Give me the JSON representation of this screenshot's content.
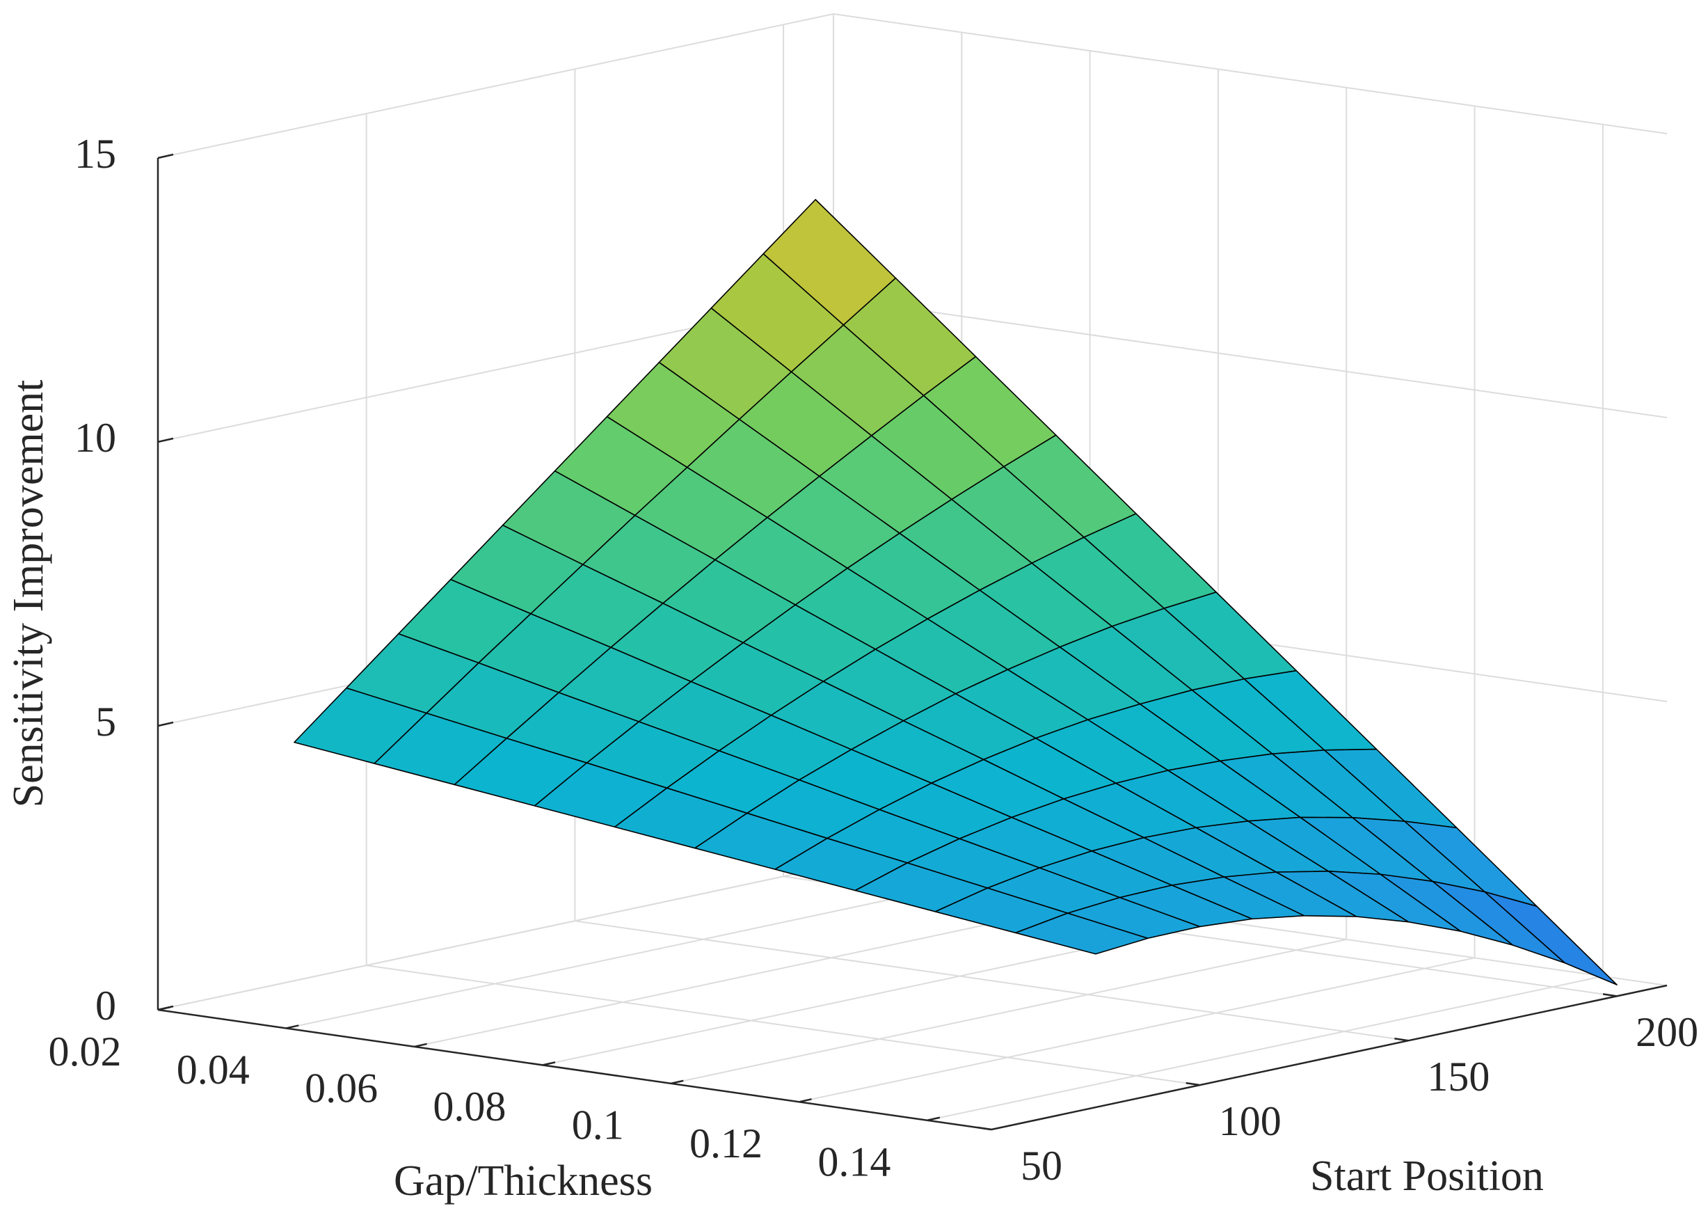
{
  "chart_data": {
    "type": "surface",
    "xlabel": "Gap/Thickness",
    "ylabel": "Start Position",
    "zlabel": "Sensitivity Improvement",
    "x": [
      0.025,
      0.0375,
      0.05,
      0.0625,
      0.075,
      0.0875,
      0.1,
      0.1125,
      0.125,
      0.1375,
      0.15
    ],
    "y": [
      75,
      87.5,
      100,
      112.5,
      125,
      137.5,
      150,
      162.5,
      175,
      187.5,
      200
    ],
    "z": [
      [
        4.4,
        5.16,
        5.92,
        6.68,
        7.44,
        8.2,
        8.96,
        9.72,
        10.48,
        11.24,
        12.0
      ],
      [
        4.23,
        4.92,
        5.61,
        6.28,
        6.95,
        7.62,
        8.27,
        8.92,
        9.56,
        10.19,
        10.82
      ],
      [
        4.06,
        4.68,
        5.29,
        5.89,
        6.47,
        7.04,
        7.59,
        8.12,
        8.64,
        9.15,
        9.64
      ],
      [
        3.89,
        4.45,
        4.98,
        5.49,
        5.98,
        6.45,
        6.9,
        7.32,
        7.72,
        8.1,
        8.46
      ],
      [
        3.72,
        4.21,
        4.67,
        5.1,
        5.5,
        5.87,
        6.21,
        6.52,
        6.8,
        7.06,
        7.28
      ],
      [
        3.55,
        3.97,
        4.36,
        4.7,
        5.01,
        5.29,
        5.52,
        5.72,
        5.89,
        6.01,
        6.1
      ],
      [
        3.38,
        3.73,
        4.04,
        4.31,
        4.53,
        4.71,
        4.84,
        4.92,
        4.97,
        4.97,
        4.92
      ],
      [
        3.21,
        3.5,
        3.73,
        3.91,
        4.04,
        4.12,
        4.15,
        4.12,
        4.05,
        3.92,
        3.74
      ],
      [
        3.04,
        3.26,
        3.42,
        3.52,
        3.56,
        3.54,
        3.46,
        3.33,
        3.13,
        2.87,
        2.56
      ],
      [
        2.87,
        3.02,
        3.1,
        3.12,
        3.07,
        2.96,
        2.78,
        2.53,
        2.21,
        1.83,
        1.38
      ],
      [
        2.7,
        2.78,
        2.79,
        2.73,
        2.59,
        2.38,
        2.09,
        1.73,
        1.29,
        0.78,
        0.2
      ]
    ],
    "xlim": [
      0.02,
      0.15
    ],
    "xticks": [
      0.02,
      0.04,
      0.06,
      0.08,
      0.1,
      0.12,
      0.14
    ],
    "ylim": [
      50,
      212
    ],
    "yticks": [
      50,
      100,
      150,
      200
    ],
    "zlim": [
      0,
      15
    ],
    "zticks": [
      0,
      5,
      10,
      15
    ],
    "grid": true,
    "colormap": [
      "#2a6ee8",
      "#1f9ae0",
      "#0cb4cf",
      "#2cc39d",
      "#6ccd64",
      "#b6c63a",
      "#f0b93b",
      "#fbc93a"
    ]
  }
}
